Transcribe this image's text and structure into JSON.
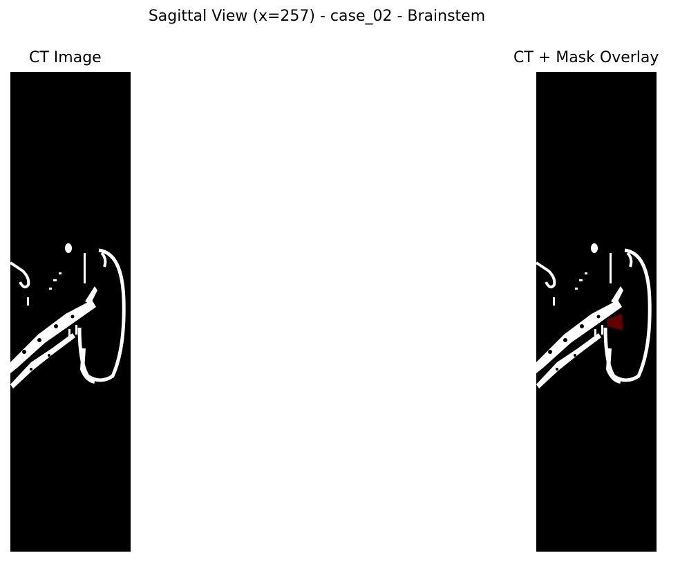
{
  "figure": {
    "suptitle": "Sagittal View (x=257) - case_02 - Brainstem"
  },
  "panels": [
    {
      "title": "CT Image",
      "shows_mask": false
    },
    {
      "title": "CT + Mask Overlay",
      "shows_mask": true
    }
  ],
  "colors": {
    "background": "#000000",
    "bone": "#ffffff",
    "mask": "#6a0000"
  }
}
